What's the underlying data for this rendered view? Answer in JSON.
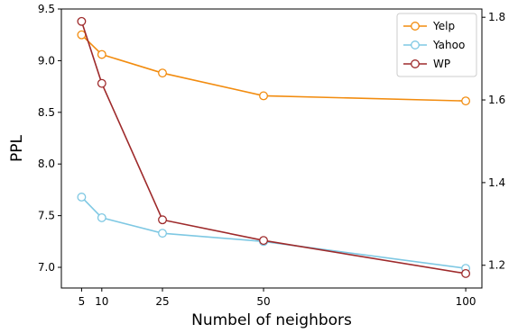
{
  "chart_data": {
    "type": "line",
    "xlabel": "Numbel of neighbors",
    "ylabel": "PPL",
    "x": [
      5,
      10,
      25,
      50,
      100
    ],
    "xticks": [
      "5",
      "10",
      "25",
      "50",
      "100"
    ],
    "xlim": [
      0,
      104
    ],
    "ylim_left": [
      6.8,
      9.5
    ],
    "ylim_right": [
      1.145,
      1.82
    ],
    "yticks_left": [
      "7.0",
      "7.5",
      "8.0",
      "8.5",
      "9.0",
      "9.5"
    ],
    "yticks_right": [
      "1.2",
      "1.4",
      "1.6",
      "1.8"
    ],
    "legend_position": "top-right",
    "grid": false,
    "series": [
      {
        "name": "Yelp",
        "axis": "left",
        "color": "#f28c0f",
        "values": [
          9.25,
          9.06,
          8.88,
          8.66,
          8.61
        ]
      },
      {
        "name": "Yahoo",
        "axis": "left",
        "color": "#7ec8e3",
        "values": [
          7.68,
          7.48,
          7.33,
          7.25,
          6.99
        ]
      },
      {
        "name": "WP",
        "axis": "right",
        "color": "#9e2a2b",
        "values": [
          1.79,
          1.64,
          1.31,
          1.26,
          1.18
        ]
      }
    ]
  }
}
